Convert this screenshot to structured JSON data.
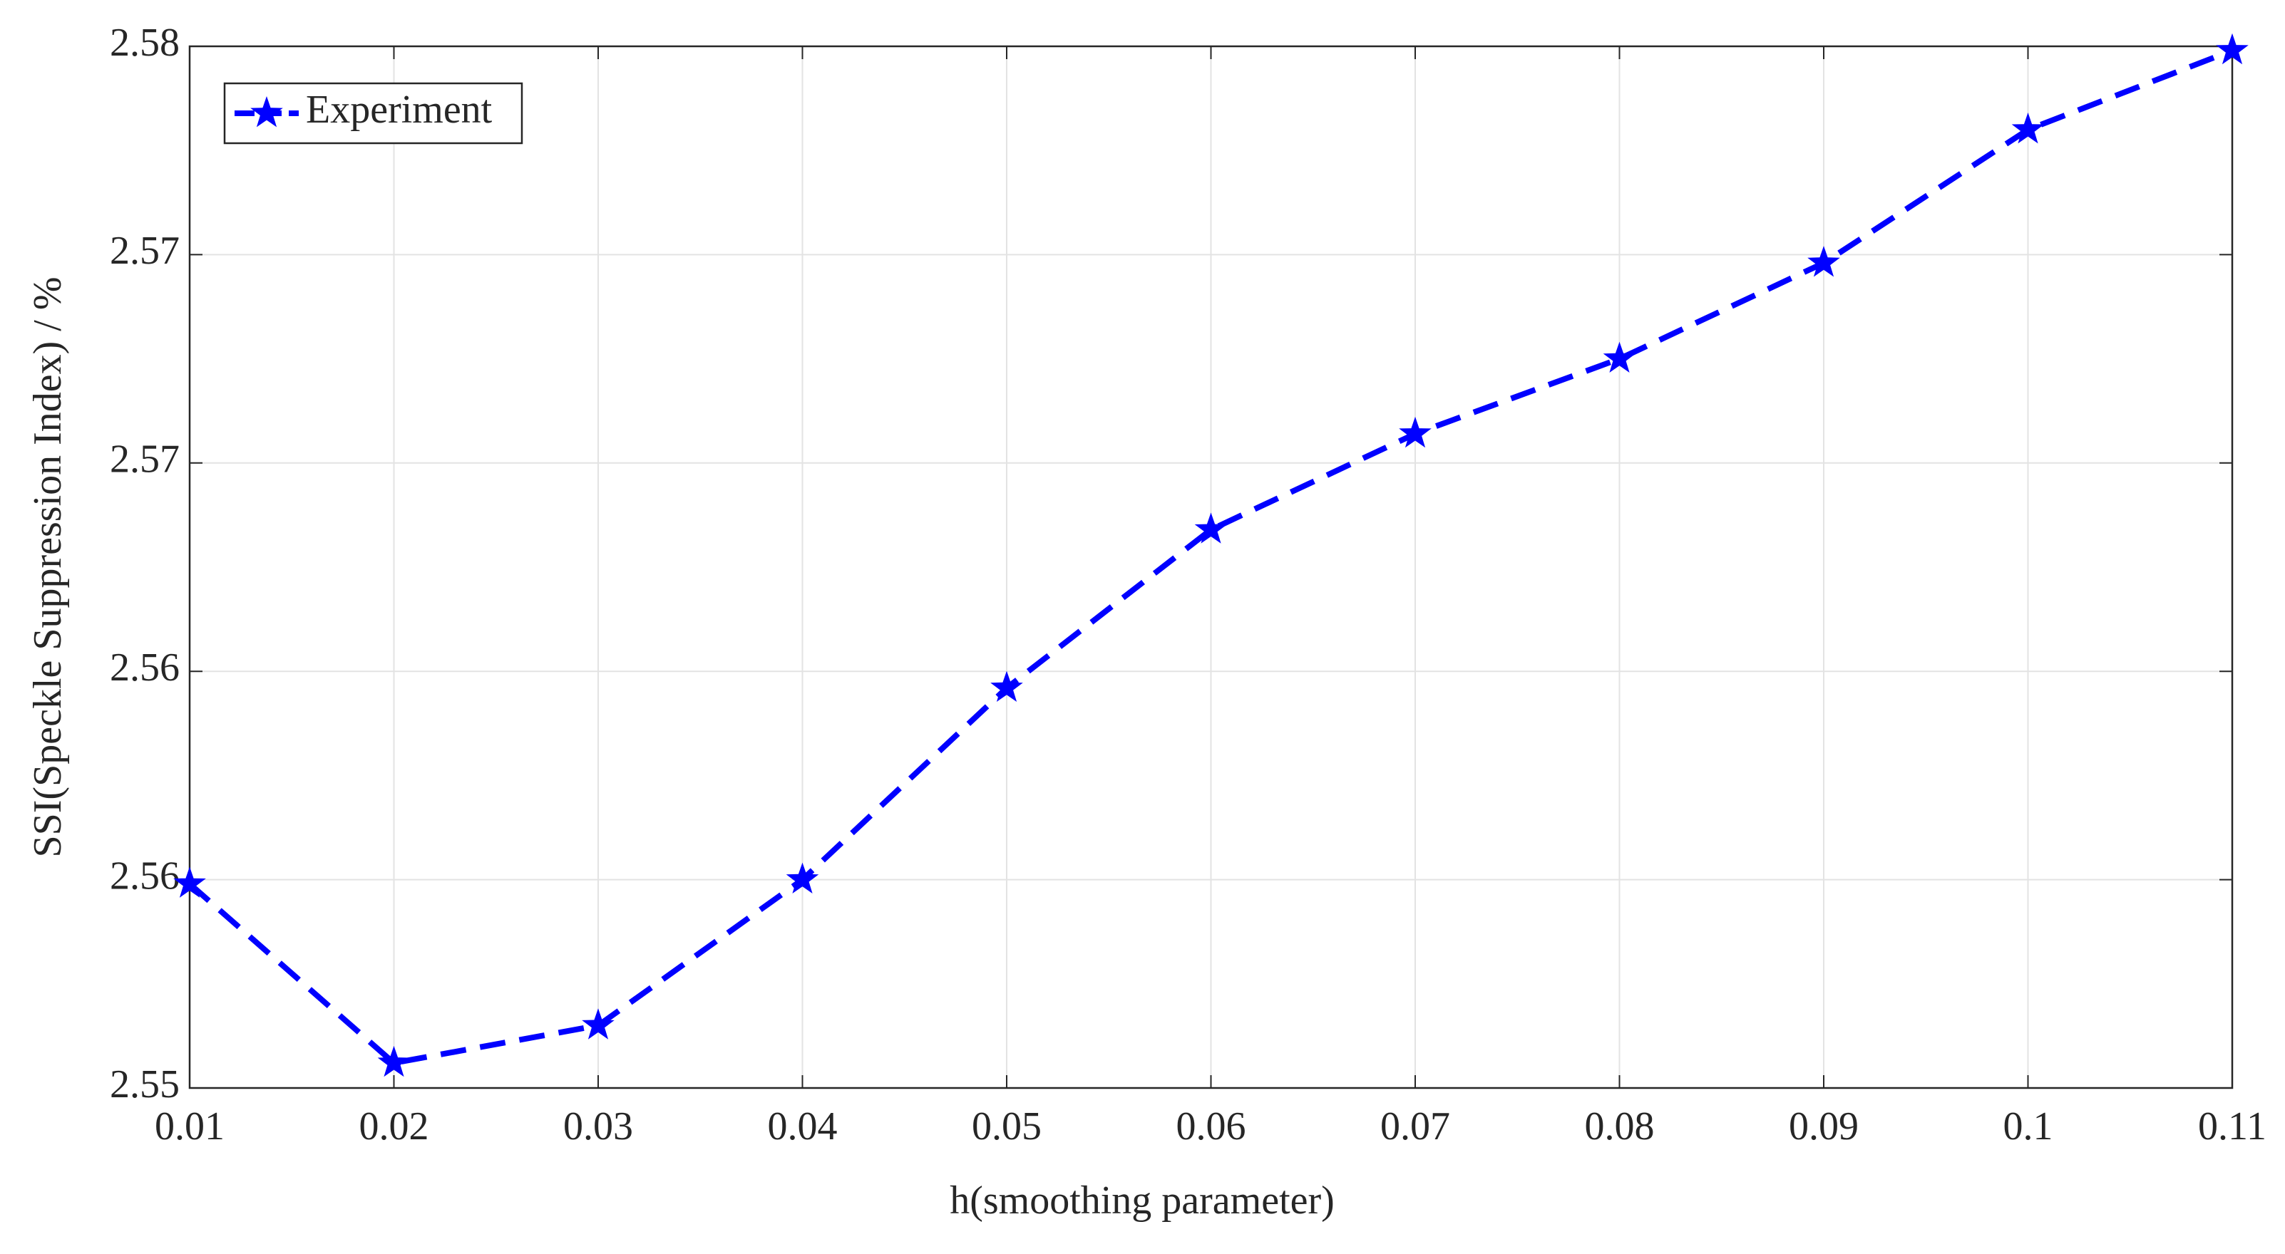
{
  "chart_data": {
    "type": "line",
    "x_label": "h(smoothing parameter)",
    "y_label": "SSI(Speckle Suppression Index) / %",
    "x": [
      0.01,
      0.02,
      0.03,
      0.04,
      0.05,
      0.06,
      0.07,
      0.08,
      0.09,
      0.1,
      0.11
    ],
    "series": [
      {
        "name": "Experiment",
        "color": "#0000ff",
        "values": [
          2.5549,
          2.5506,
          2.5515,
          2.555,
          2.5596,
          2.5634,
          2.5657,
          2.5675,
          2.5698,
          2.573,
          2.5749
        ]
      }
    ],
    "xlim": [
      0.01,
      0.11
    ],
    "xticks": [
      0.01,
      0.02,
      0.03,
      0.04,
      0.05,
      0.06,
      0.07,
      0.08,
      0.09,
      0.1,
      0.11
    ],
    "ylim": [
      2.55,
      2.575
    ],
    "yticks": [
      {
        "value": 2.55,
        "label": "2.55"
      },
      {
        "value": 2.555,
        "label": "2.56"
      },
      {
        "value": 2.56,
        "label": "2.56"
      },
      {
        "value": 2.565,
        "label": "2.57"
      },
      {
        "value": 2.57,
        "label": "2.57"
      },
      {
        "value": 2.575,
        "label": "2.58"
      }
    ],
    "grid": true,
    "legend": "upper left"
  }
}
